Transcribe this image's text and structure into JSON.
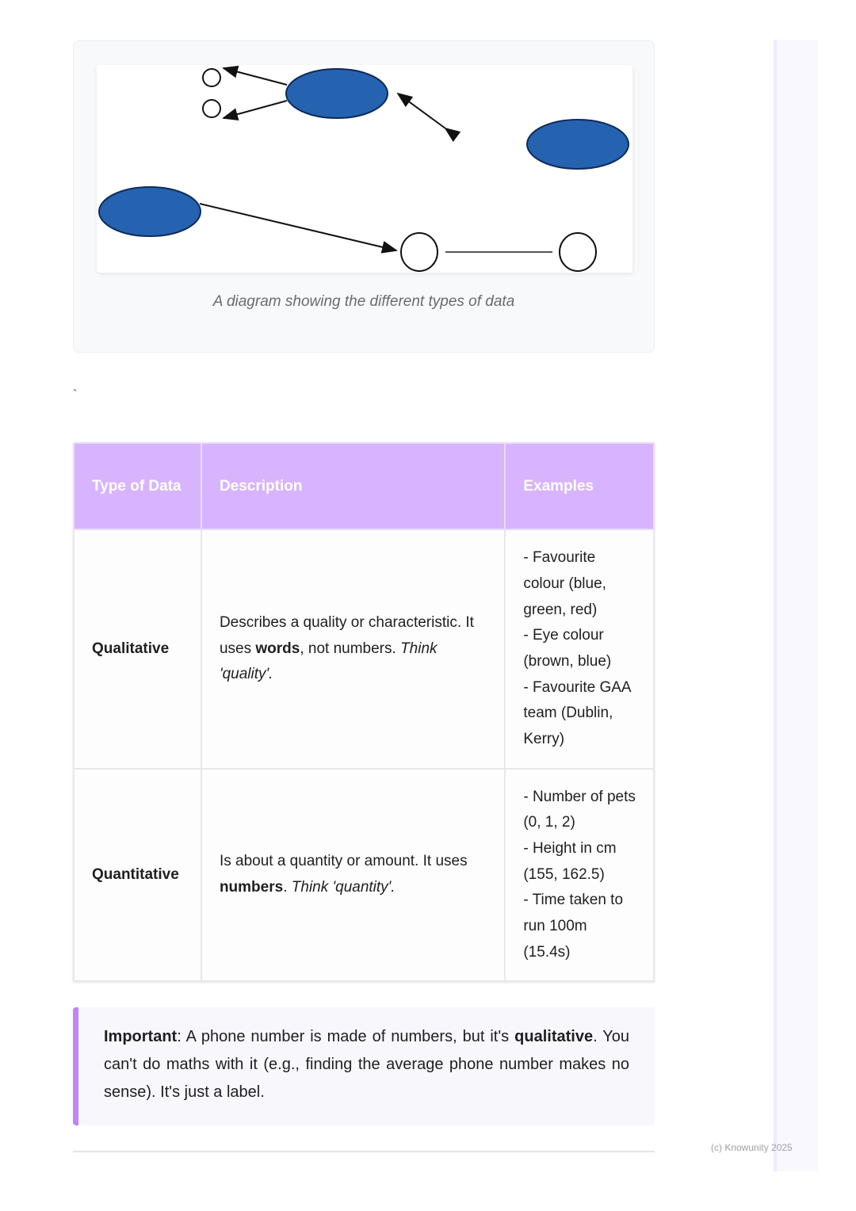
{
  "figure": {
    "caption": "A diagram showing the different types of data",
    "fill_color": "#2563b0"
  },
  "stray_mark": "`",
  "table": {
    "headers": [
      "Type of Data",
      "Description",
      "Examples"
    ],
    "rows": [
      {
        "type": "Qualitative",
        "desc": {
          "a": "Describes a quality or characteristic. It uses ",
          "b": "words",
          "c": ", not numbers. ",
          "d": "Think 'quality'."
        },
        "examples": [
          "- Favourite colour (blue, green, red)",
          "- Eye colour (brown, blue)",
          "- Favourite GAA team (Dublin, Kerry)"
        ]
      },
      {
        "type": "Quantitative",
        "desc": {
          "a": "Is about a quantity or amount. It uses ",
          "b": "numbers",
          "c": ". ",
          "d": "Think 'quantity'."
        },
        "examples": [
          "- Number of pets (0, 1, 2)",
          "- Height in cm (155, 162.5)",
          "- Time taken to run 100m (15.4s)"
        ]
      }
    ],
    "header_color": "#d8b4fe"
  },
  "callout": {
    "label": "Important",
    "t1": ": A phone number is made of numbers, but it's ",
    "bold": "qualitative",
    "t2": ". You can't do maths with it (e.g., finding the average phone number makes no sense). It's just a label.",
    "accent": "#c084fc"
  },
  "footer": "(c) Knowunity 2025"
}
